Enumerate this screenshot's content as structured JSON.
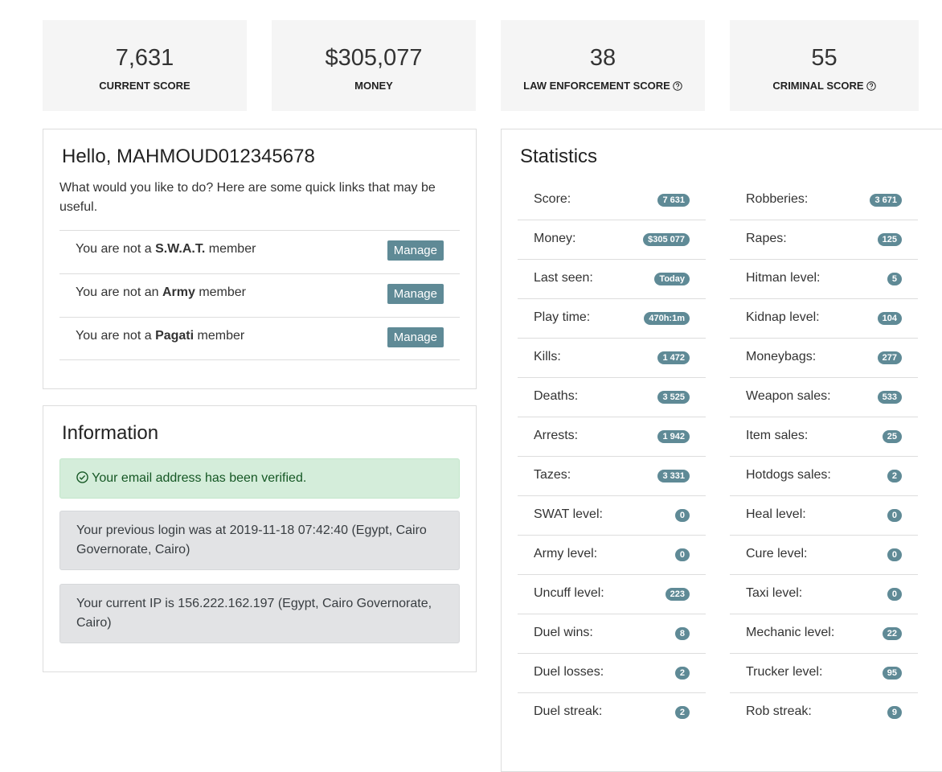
{
  "stats": [
    {
      "value": "7,631",
      "label": "CURRENT SCORE"
    },
    {
      "value": "$305,077",
      "label": "MONEY"
    },
    {
      "value": "38",
      "label": "LAW ENFORCEMENT SCORE"
    },
    {
      "value": "55",
      "label": "CRIMINAL SCORE"
    }
  ],
  "hello": {
    "title": "Hello, MAHMOUD012345678",
    "text": "What would you like to do? Here are some quick links that may be useful.",
    "rows": [
      {
        "before": "You are not a",
        "bold": "S.W.A.T.",
        "after": "member",
        "button": "Manage"
      },
      {
        "before": "You are not an",
        "bold": "Army",
        "after": "member",
        "button": "Manage"
      },
      {
        "before": "You are not a",
        "bold": "Pagati",
        "after": "member",
        "button": "Manage"
      }
    ]
  },
  "information": {
    "title": "Information",
    "verified": "Your email address has been verified.",
    "notes": [
      "Your previous login was at 2019-11-18 07:42:40 (Egypt, Cairo Governorate, Cairo)",
      "Your current IP is 156.222.162.197 (Egypt, Cairo Governorate, Cairo)"
    ]
  },
  "statistics": {
    "title": "Statistics",
    "left": [
      {
        "label": "Score:",
        "badge": "7 631"
      },
      {
        "label": "Money:",
        "badge": "$305 077"
      },
      {
        "label": "Last seen:",
        "badge": "Today"
      },
      {
        "label": "Play time:",
        "badge": "470h:1m"
      },
      {
        "label": "Kills:",
        "badge": "1 472"
      },
      {
        "label": "Deaths:",
        "badge": "3 525"
      },
      {
        "label": "Arrests:",
        "badge": "1 942"
      },
      {
        "label": "Tazes:",
        "badge": "3 331"
      },
      {
        "label": "SWAT level:",
        "badge": "0"
      },
      {
        "label": "Army level:",
        "badge": "0"
      },
      {
        "label": "Uncuff level:",
        "badge": "223"
      },
      {
        "label": "Duel wins:",
        "badge": "8"
      },
      {
        "label": "Duel losses:",
        "badge": "2"
      },
      {
        "label": "Duel streak:",
        "badge": "2"
      }
    ],
    "right": [
      {
        "label": "Robberies:",
        "badge": "3 671"
      },
      {
        "label": "Rapes:",
        "badge": "125"
      },
      {
        "label": "Hitman level:",
        "badge": "5"
      },
      {
        "label": "Kidnap level:",
        "badge": "104"
      },
      {
        "label": "Moneybags:",
        "badge": "277"
      },
      {
        "label": "Weapon sales:",
        "badge": "533"
      },
      {
        "label": "Item sales:",
        "badge": "25"
      },
      {
        "label": "Hotdogs sales:",
        "badge": "2"
      },
      {
        "label": "Heal level:",
        "badge": "0"
      },
      {
        "label": "Cure level:",
        "badge": "0"
      },
      {
        "label": "Taxi level:",
        "badge": "0"
      },
      {
        "label": "Mechanic level:",
        "badge": "22"
      },
      {
        "label": "Trucker level:",
        "badge": "95"
      },
      {
        "label": "Rob streak:",
        "badge": "9"
      }
    ]
  }
}
